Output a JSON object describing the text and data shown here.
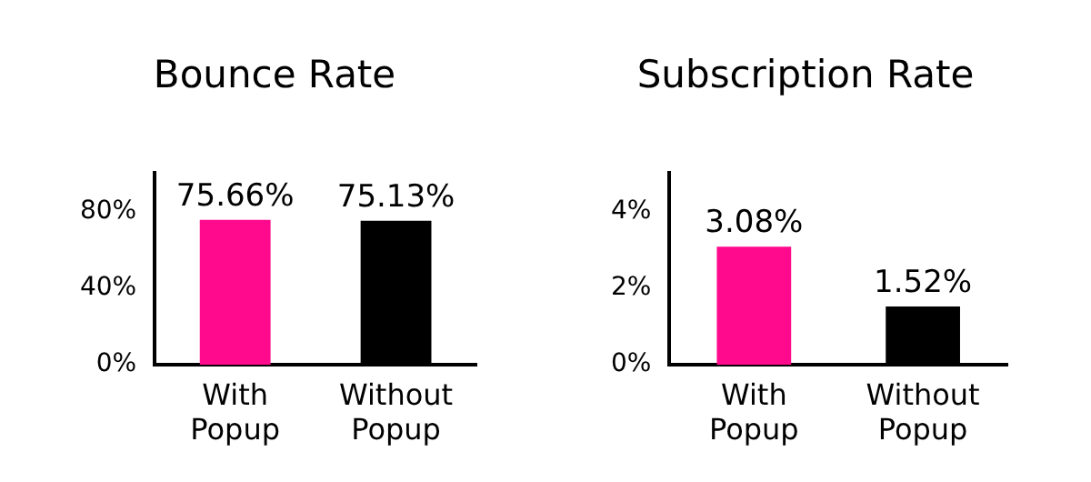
{
  "chart_data": [
    {
      "type": "bar",
      "title": "Bounce Rate",
      "categories": [
        "With Popup",
        "Without Popup"
      ],
      "values": [
        75.66,
        75.13
      ],
      "colors": [
        "#ff0a8c",
        "#000000"
      ],
      "value_labels": [
        "75.66%",
        "75.13%"
      ],
      "ylim": [
        0,
        100
      ],
      "yticks": [
        {
          "value": 0,
          "label": "0%"
        },
        {
          "value": 40,
          "label": "40%"
        },
        {
          "value": 80,
          "label": "80%"
        }
      ],
      "grid": false,
      "legend": false
    },
    {
      "type": "bar",
      "title": "Subscription Rate",
      "categories": [
        "With Popup",
        "Without Popup"
      ],
      "values": [
        3.08,
        1.52
      ],
      "colors": [
        "#ff0a8c",
        "#000000"
      ],
      "value_labels": [
        "3.08%",
        "1.52%"
      ],
      "ylim": [
        0,
        5
      ],
      "yticks": [
        {
          "value": 0,
          "label": "0%"
        },
        {
          "value": 2,
          "label": "2%"
        },
        {
          "value": 4,
          "label": "4%"
        }
      ],
      "grid": false,
      "legend": false
    }
  ]
}
